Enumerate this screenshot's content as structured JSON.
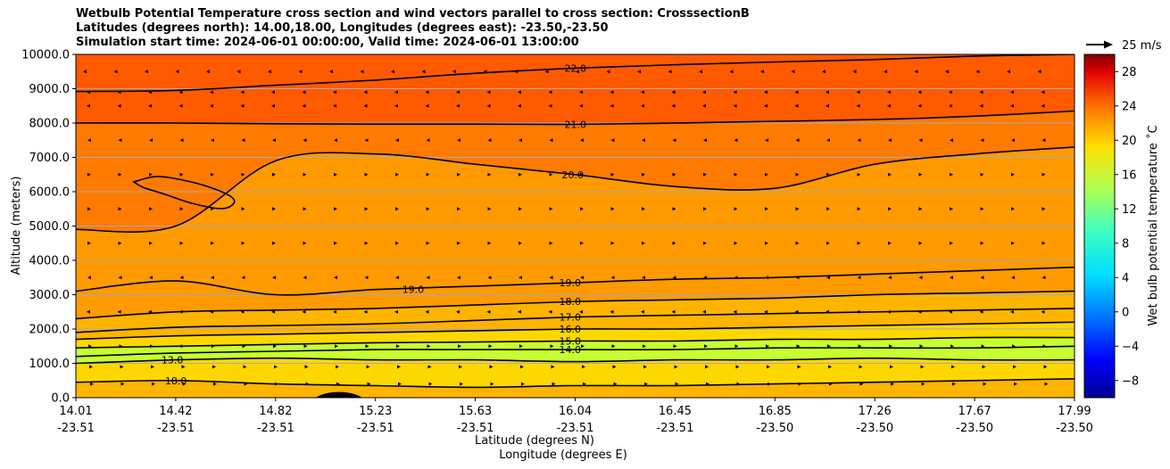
{
  "header": {
    "title_line1": "Wetbulb Potential Temperature cross section and wind vectors parallel to cross section: CrosssectionB",
    "title_line2": "Latitudes (degrees north): 14.00,18.00, Longitudes (degrees east): -23.50,-23.50",
    "title_line3": "Simulation start time: 2024-06-01 00:00:00, Valid time: 2024-06-01 13:00:00"
  },
  "chart_data": {
    "type": "heatmap",
    "ylabel": "Altitude (meters)",
    "xlabel_lat": "Latitude (degrees N)",
    "xlabel_lon": "Longitude (degrees E)",
    "ylim": [
      0,
      10000
    ],
    "grid": "horizontal",
    "y_ticks": [
      "0.0",
      "1000.0",
      "2000.0",
      "3000.0",
      "4000.0",
      "5000.0",
      "6000.0",
      "7000.0",
      "8000.0",
      "9000.0",
      "10000.0"
    ],
    "y_tick_values": [
      0,
      1000,
      2000,
      3000,
      4000,
      5000,
      6000,
      7000,
      8000,
      9000,
      10000
    ],
    "x_ticks": [
      {
        "lat": "14.01",
        "lon": "-23.51"
      },
      {
        "lat": "14.42",
        "lon": "-23.51"
      },
      {
        "lat": "14.82",
        "lon": "-23.51"
      },
      {
        "lat": "15.23",
        "lon": "-23.51"
      },
      {
        "lat": "15.63",
        "lon": "-23.51"
      },
      {
        "lat": "16.04",
        "lon": "-23.51"
      },
      {
        "lat": "16.45",
        "lon": "-23.51"
      },
      {
        "lat": "16.85",
        "lon": "-23.50"
      },
      {
        "lat": "17.26",
        "lon": "-23.50"
      },
      {
        "lat": "17.67",
        "lon": "-23.50"
      },
      {
        "lat": "17.99",
        "lon": "-23.50"
      }
    ],
    "colorbar": {
      "label": "Wet bulb potential temperature $^\\circ$C",
      "display_label": "Wet bulb potential temperature ˚C",
      "range": [
        -10,
        30
      ],
      "ticks": [
        "−8",
        "−4",
        "0",
        "4",
        "8",
        "12",
        "16",
        "20",
        "24",
        "28"
      ],
      "tick_values": [
        -8,
        -4,
        0,
        4,
        8,
        12,
        16,
        20,
        24,
        28
      ]
    },
    "quiver_key": "25 m/s",
    "contour_levels": [
      {
        "level": 22.0,
        "label": "22.0",
        "altitudes": [
          8920,
          8950,
          9100,
          9250,
          9450,
          9600,
          9700,
          9780,
          9850,
          9950,
          10000
        ]
      },
      {
        "level": 21.0,
        "label": "21.0",
        "altitudes": [
          8000,
          8000,
          7980,
          7970,
          7970,
          7960,
          8000,
          8050,
          8100,
          8200,
          8350
        ]
      },
      {
        "level": 20.0,
        "label": "20.0",
        "altitudes": [
          4900,
          5000,
          6900,
          7100,
          6800,
          6500,
          6150,
          6100,
          6800,
          7100,
          7300
        ]
      },
      {
        "level": 19.0,
        "label": "19.0",
        "altitudes": [
          3100,
          3400,
          3000,
          3150,
          3250,
          3350,
          3450,
          3500,
          3600,
          3700,
          3800
        ]
      },
      {
        "level": 18.0,
        "label": "18.0",
        "altitudes": [
          2300,
          2500,
          2550,
          2600,
          2700,
          2800,
          2850,
          2900,
          3000,
          3050,
          3100
        ]
      },
      {
        "level": 17.0,
        "label": "17.0",
        "altitudes": [
          1900,
          2050,
          2100,
          2150,
          2250,
          2350,
          2400,
          2450,
          2500,
          2550,
          2600
        ]
      },
      {
        "level": 16.0,
        "label": "16.0",
        "altitudes": [
          1700,
          1800,
          1850,
          1900,
          1950,
          2000,
          2000,
          2050,
          2100,
          2150,
          2200
        ]
      },
      {
        "level": 15.0,
        "label": "15.0",
        "altitudes": [
          1450,
          1500,
          1550,
          1600,
          1620,
          1650,
          1650,
          1700,
          1700,
          1750,
          1750
        ]
      },
      {
        "level": 14.0,
        "label": "14.0",
        "altitudes": [
          1200,
          1300,
          1350,
          1400,
          1400,
          1400,
          1400,
          1450,
          1450,
          1450,
          1500
        ]
      },
      {
        "level": 13.0,
        "label": "13.0",
        "altitudes": [
          1000,
          1100,
          1150,
          1100,
          1100,
          1050,
          1100,
          1100,
          1150,
          1100,
          1100
        ]
      },
      {
        "level": 18.0,
        "label": "18.0",
        "altitudes": [
          450,
          500,
          400,
          350,
          300,
          350,
          350,
          400,
          450,
          500,
          550
        ]
      }
    ],
    "terrain": {
      "lat_range": [
        "14.99",
        "15.15"
      ],
      "peak_altitude": 220
    },
    "annotations": [
      "22.0",
      "21.0",
      "20.0",
      "19.0",
      "18.0",
      "17.0",
      "16.0",
      "15.0",
      "14.0",
      "13.0",
      "19.0",
      "18.0"
    ]
  },
  "colors": {
    "band_top": "#ff5a00",
    "band_upper": "#ff7a00",
    "band_mid": "#ff9a00",
    "band_lowmid": "#ffb400",
    "band_low": "#ffd700",
    "band_green": "#c8ff30",
    "grid": "#aaaaaa"
  }
}
